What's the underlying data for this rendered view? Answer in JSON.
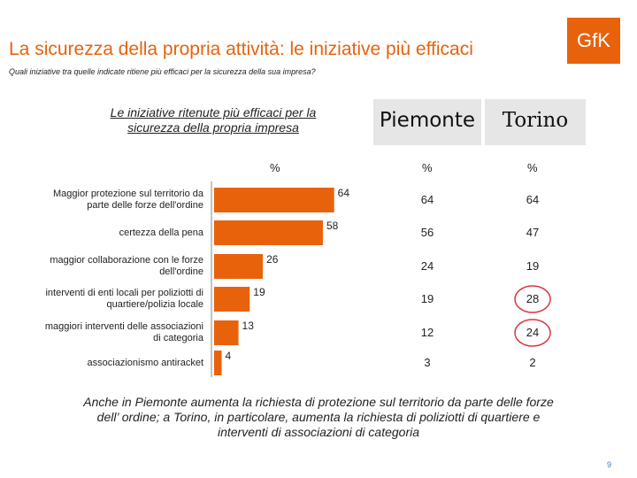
{
  "header": {
    "title": "La sicurezza della propria attività: le iniziative più efficaci",
    "logo": "GfK",
    "subtitle": "Quali iniziative tra quelle indicate ritiene più efficaci per la sicurezza della sua impresa?"
  },
  "table": {
    "left_header_line1": "Le iniziative ritenute più efficaci per la",
    "left_header_line2": "sicurezza della propria impresa",
    "col_piemonte": "Piemonte",
    "col_torino": "Torino",
    "pct": "%"
  },
  "chart_data": {
    "type": "bar",
    "orientation": "horizontal",
    "categories": [
      [
        "Maggior protezione sul territorio da",
        "parte delle forze dell'ordine"
      ],
      [
        "certezza della pena"
      ],
      [
        "maggior collaborazione con le forze",
        "dell'ordine"
      ],
      [
        "interventi di enti locali per poliziotti di",
        "quartiere/polizia locale"
      ],
      [
        "maggiori interventi delle associazioni",
        "di categoria"
      ],
      [
        "associazionismo antiracket"
      ]
    ],
    "values": [
      64,
      58,
      26,
      19,
      13,
      4
    ],
    "value_labels": [
      "64",
      "58",
      "26",
      "19",
      "13",
      "4"
    ],
    "xlabel": "%",
    "bar_color": "#e8620c",
    "table_piemonte": [
      "64",
      "56",
      "24",
      "19",
      "12",
      "3"
    ],
    "table_torino": [
      "64",
      "47",
      "19",
      "28",
      "24",
      "2"
    ],
    "circled_torino": [
      3,
      4
    ]
  },
  "note": {
    "line1": "Anche in Piemonte aumenta la richiesta di protezione sul territorio da parte delle forze",
    "line2": "dell’ ordine;  a Torino, in particolare, aumenta la richiesta di poliziotti di quartiere e",
    "line3": "interventi di associazioni di categoria"
  },
  "page_number": "9"
}
